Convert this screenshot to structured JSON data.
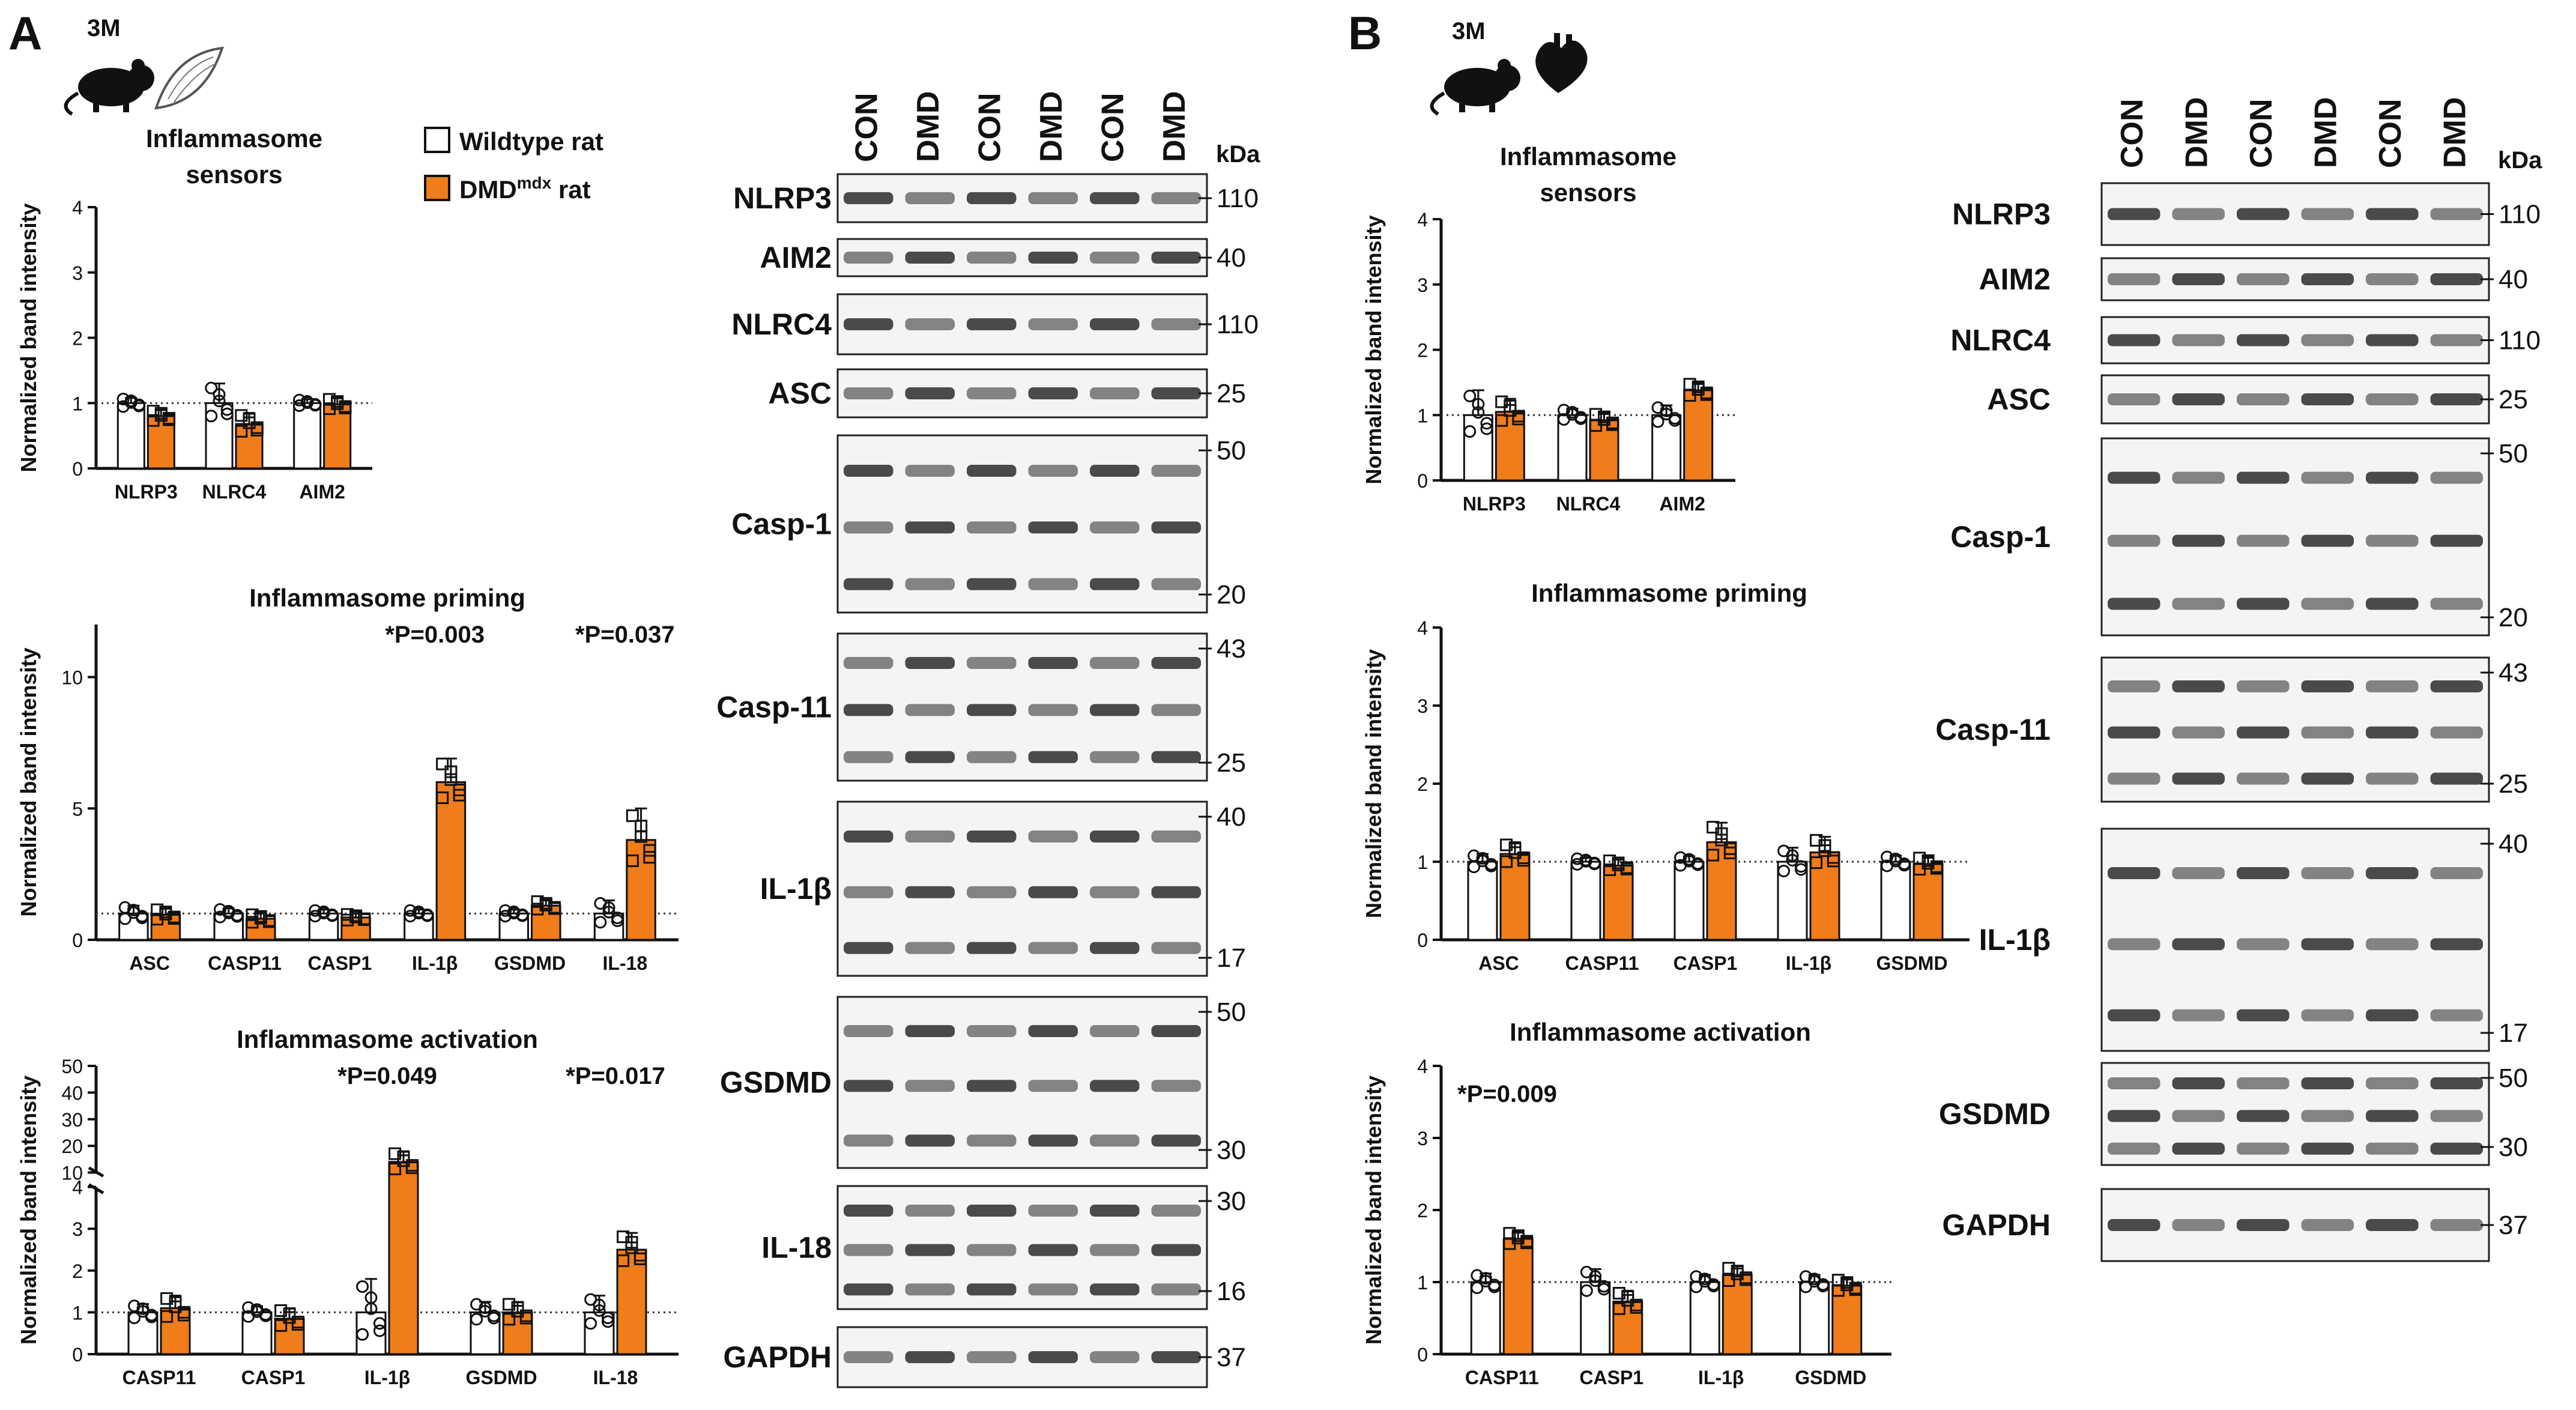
{
  "colors": {
    "wt": "#ffffff",
    "dmd": "#f07c1a",
    "axis": "#111111",
    "blot_bg": "#f4f4f4"
  },
  "legend": {
    "wt_label": "Wildtype rat",
    "dmd_label": "DMD",
    "dmd_sup": "mdx",
    "dmd_suffix": " rat"
  },
  "panels": [
    {
      "letter": "A",
      "age": "3M",
      "icons": [
        "rat-icon",
        "muscle-icon"
      ],
      "blot": {
        "lanes": [
          "CON",
          "DMD",
          "CON",
          "DMD",
          "CON",
          "DMD"
        ],
        "kda_label": "kDa",
        "rows": [
          {
            "name": "NLRP3",
            "markers": [
              "110"
            ]
          },
          {
            "name": "AIM2",
            "markers": [
              "40"
            ]
          },
          {
            "name": "NLRC4",
            "markers": [
              "110"
            ]
          },
          {
            "name": "ASC",
            "markers": [
              "25"
            ]
          },
          {
            "name": "Casp-1",
            "markers": [
              "50",
              "20"
            ]
          },
          {
            "name": "Casp-11",
            "markers": [
              "43",
              "25"
            ]
          },
          {
            "name": "IL-1β",
            "markers": [
              "40",
              "17"
            ]
          },
          {
            "name": "GSDMD",
            "markers": [
              "50",
              "30"
            ]
          },
          {
            "name": "IL-18",
            "markers": [
              "30",
              "16"
            ]
          },
          {
            "name": "GAPDH",
            "markers": [
              "37"
            ]
          }
        ]
      }
    },
    {
      "letter": "B",
      "age": "3M",
      "icons": [
        "rat-icon",
        "heart-icon"
      ],
      "blot": {
        "lanes": [
          "CON",
          "DMD",
          "CON",
          "DMD",
          "CON",
          "DMD"
        ],
        "kda_label": "kDa",
        "rows": [
          {
            "name": "NLRP3",
            "markers": [
              "110"
            ]
          },
          {
            "name": "AIM2",
            "markers": [
              "40"
            ]
          },
          {
            "name": "NLRC4",
            "markers": [
              "110"
            ]
          },
          {
            "name": "ASC",
            "markers": [
              "25"
            ]
          },
          {
            "name": "Casp-1",
            "markers": [
              "50",
              "20"
            ]
          },
          {
            "name": "Casp-11",
            "markers": [
              "43",
              "25"
            ]
          },
          {
            "name": "IL-1β",
            "markers": [
              "40",
              "17"
            ]
          },
          {
            "name": "GSDMD",
            "markers": [
              "50",
              "30"
            ]
          },
          {
            "name": "GAPDH",
            "markers": [
              "37"
            ]
          }
        ]
      }
    }
  ],
  "chart_data": [
    {
      "id": "A-sensors",
      "type": "bar",
      "panel": "A",
      "title": "Inflammasome sensors",
      "ylabel": "Normalized band intensity",
      "ylim": [
        0,
        4
      ],
      "yticks": [
        "0",
        "1",
        "2",
        "3",
        "4"
      ],
      "reference_line": 1,
      "categories": [
        "NLRP3",
        "NLRC4",
        "AIM2"
      ],
      "series": [
        {
          "name": "Wildtype rat",
          "values": [
            1.0,
            1.0,
            1.0
          ],
          "sem": [
            0.08,
            0.3,
            0.06
          ]
        },
        {
          "name": "DMDmdx rat",
          "values": [
            0.8,
            0.68,
            0.98
          ],
          "sem": [
            0.1,
            0.17,
            0.1
          ]
        }
      ],
      "annotations": []
    },
    {
      "id": "A-priming",
      "type": "bar",
      "panel": "A",
      "title": "Inflammasome priming",
      "ylabel": "Normalized band intensity",
      "ylim": [
        0,
        12
      ],
      "yticks": [
        "0",
        "5",
        "10"
      ],
      "reference_line": 1,
      "categories": [
        "ASC",
        "CASP11",
        "CASP1",
        "IL-1β",
        "GSDMD",
        "IL-18"
      ],
      "series": [
        {
          "name": "Wildtype rat",
          "values": [
            1.0,
            1.0,
            1.0,
            1.0,
            1.0,
            1.0
          ],
          "sem": [
            0.3,
            0.2,
            0.15,
            0.15,
            0.15,
            0.5
          ]
        },
        {
          "name": "DMDmdx rat",
          "values": [
            0.95,
            0.8,
            0.85,
            6.0,
            1.3,
            3.8
          ],
          "sem": [
            0.25,
            0.2,
            0.15,
            0.9,
            0.2,
            1.2
          ]
        }
      ],
      "annotations": [
        {
          "category": "IL-1β",
          "text": "*P=0.003"
        },
        {
          "category": "IL-18",
          "text": "*P=0.037"
        }
      ]
    },
    {
      "id": "A-activation",
      "type": "bar",
      "panel": "A",
      "broken_axis": true,
      "title": "Inflammasome activation",
      "ylabel": "Normalized band intensity",
      "ylim": [
        0,
        50
      ],
      "yticks": [
        "0",
        "1",
        "2",
        "3",
        "4",
        "10",
        "20",
        "30",
        "40",
        "50"
      ],
      "axis_break": [
        4,
        10
      ],
      "reference_line": 1,
      "categories": [
        "CASP11",
        "CASP1",
        "IL-1β",
        "GSDMD",
        "IL-18"
      ],
      "series": [
        {
          "name": "Wildtype rat",
          "values": [
            1.0,
            1.0,
            1.0,
            1.0,
            1.0
          ],
          "sem": [
            0.2,
            0.15,
            0.8,
            0.25,
            0.4
          ]
        },
        {
          "name": "DMDmdx rat",
          "values": [
            1.1,
            0.85,
            14.0,
            1.0,
            2.5
          ],
          "sem": [
            0.3,
            0.25,
            4.0,
            0.25,
            0.4
          ]
        }
      ],
      "annotations": [
        {
          "category": "IL-1β",
          "text": "*P=0.049"
        },
        {
          "category": "IL-18",
          "text": "*P=0.017"
        }
      ]
    },
    {
      "id": "B-sensors",
      "type": "bar",
      "panel": "B",
      "title": "Inflammasome sensors",
      "ylabel": "Normalized band intensity",
      "ylim": [
        0,
        4
      ],
      "yticks": [
        "0",
        "1",
        "2",
        "3",
        "4"
      ],
      "reference_line": 1,
      "categories": [
        "NLRP3",
        "NLRC4",
        "AIM2"
      ],
      "series": [
        {
          "name": "Wildtype rat",
          "values": [
            1.0,
            1.0,
            1.0
          ],
          "sem": [
            0.38,
            0.1,
            0.15
          ]
        },
        {
          "name": "DMDmdx rat",
          "values": [
            1.05,
            0.92,
            1.38
          ],
          "sem": [
            0.2,
            0.12,
            0.12
          ]
        }
      ],
      "annotations": []
    },
    {
      "id": "B-priming",
      "type": "bar",
      "panel": "B",
      "title": "Inflammasome priming",
      "ylabel": "Normalized band intensity",
      "ylim": [
        0,
        4
      ],
      "yticks": [
        "0",
        "1",
        "2",
        "3",
        "4"
      ],
      "reference_line": 1,
      "categories": [
        "ASC",
        "CASP11",
        "CASP1",
        "IL-1β",
        "GSDMD"
      ],
      "series": [
        {
          "name": "Wildtype rat",
          "values": [
            1.0,
            1.0,
            1.0,
            1.0,
            1.0
          ],
          "sem": [
            0.1,
            0.05,
            0.07,
            0.18,
            0.08
          ]
        },
        {
          "name": "DMDmdx rat",
          "values": [
            1.1,
            0.95,
            1.25,
            1.12,
            0.97
          ],
          "sem": [
            0.15,
            0.08,
            0.25,
            0.2,
            0.1
          ]
        }
      ],
      "annotations": []
    },
    {
      "id": "B-activation",
      "type": "bar",
      "panel": "B",
      "title": "Inflammasome activation",
      "ylabel": "Normalized band intensity",
      "ylim": [
        0,
        4
      ],
      "yticks": [
        "0",
        "1",
        "2",
        "3",
        "4"
      ],
      "reference_line": 1,
      "categories": [
        "CASP11",
        "CASP1",
        "IL-1β",
        "GSDMD"
      ],
      "series": [
        {
          "name": "Wildtype rat",
          "values": [
            1.0,
            1.0,
            1.0,
            1.0
          ],
          "sem": [
            0.12,
            0.18,
            0.1,
            0.1
          ]
        },
        {
          "name": "DMDmdx rat",
          "values": [
            1.6,
            0.73,
            1.1,
            0.95
          ],
          "sem": [
            0.1,
            0.15,
            0.12,
            0.1
          ]
        }
      ],
      "annotations": [
        {
          "category": "CASP11",
          "text": "*P=0.009",
          "position": "top-left"
        }
      ]
    }
  ]
}
